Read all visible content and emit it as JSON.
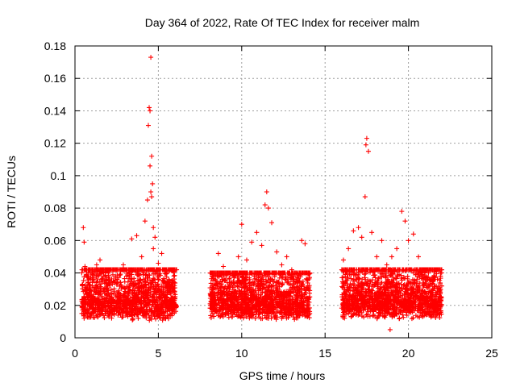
{
  "chart_data": {
    "type": "scatter",
    "title": "Day 364 of 2022, Rate Of TEC Index for receiver malm",
    "xlabel": "GPS time / hours",
    "ylabel": "ROTI / TECUs",
    "xlim": [
      0,
      25
    ],
    "ylim": [
      0,
      0.18
    ],
    "x_ticks": [
      "0",
      "5",
      "10",
      "15",
      "20",
      "25"
    ],
    "y_ticks": [
      "0",
      "0.02",
      "0.04",
      "0.06",
      "0.08",
      "0.1",
      "0.12",
      "0.14",
      "0.16",
      "0.18"
    ],
    "grid": true,
    "marker": "+",
    "color": "#ff0000",
    "series": [
      {
        "x": [
          0.5,
          0.55,
          0.6,
          0.7,
          0.9,
          1.1,
          1.3,
          1.5,
          1.7,
          2.0,
          2.3,
          2.6,
          2.9,
          3.1,
          3.4,
          3.7,
          4.0,
          4.2,
          4.35,
          4.45,
          4.5,
          4.55,
          4.6,
          4.65,
          4.7,
          4.8,
          5.0,
          5.2,
          5.5,
          5.8,
          6.0,
          0.6,
          1.0,
          1.4,
          1.8,
          2.2,
          2.7,
          3.2,
          3.6,
          4.1,
          4.4,
          4.5,
          4.55,
          4.6,
          4.7,
          5.3,
          5.7,
          8.3,
          8.6,
          8.9,
          9.2,
          9.5,
          9.8,
          10.0,
          10.3,
          10.6,
          10.9,
          11.2,
          11.4,
          11.5,
          11.6,
          11.8,
          12.1,
          12.4,
          12.7,
          13.0,
          13.3,
          13.6,
          13.8,
          14.0,
          8.5,
          9.0,
          9.7,
          10.2,
          10.8,
          11.5,
          12.3,
          13.1,
          13.9,
          16.1,
          16.4,
          16.7,
          17.0,
          17.2,
          17.4,
          17.45,
          17.5,
          17.6,
          17.8,
          18.1,
          18.4,
          18.7,
          19.0,
          19.3,
          19.6,
          19.8,
          20.0,
          20.3,
          20.6,
          20.9,
          21.2,
          21.5,
          21.8,
          22.0,
          16.5,
          17.3,
          18.0,
          18.9,
          19.5,
          20.1,
          20.8,
          21.6
        ],
        "y": [
          0.068,
          0.059,
          0.044,
          0.03,
          0.025,
          0.036,
          0.045,
          0.048,
          0.03,
          0.04,
          0.035,
          0.029,
          0.045,
          0.038,
          0.061,
          0.063,
          0.05,
          0.072,
          0.085,
          0.142,
          0.14,
          0.173,
          0.112,
          0.095,
          0.068,
          0.062,
          0.046,
          0.052,
          0.04,
          0.035,
          0.024,
          0.018,
          0.015,
          0.02,
          0.022,
          0.017,
          0.019,
          0.021,
          0.026,
          0.03,
          0.131,
          0.106,
          0.09,
          0.087,
          0.055,
          0.03,
          0.022,
          0.03,
          0.052,
          0.044,
          0.04,
          0.035,
          0.05,
          0.07,
          0.048,
          0.059,
          0.065,
          0.057,
          0.082,
          0.09,
          0.08,
          0.071,
          0.053,
          0.045,
          0.05,
          0.042,
          0.035,
          0.06,
          0.058,
          0.03,
          0.016,
          0.02,
          0.018,
          0.022,
          0.019,
          0.024,
          0.02,
          0.018,
          0.02,
          0.048,
          0.055,
          0.066,
          0.068,
          0.062,
          0.087,
          0.119,
          0.123,
          0.115,
          0.065,
          0.05,
          0.06,
          0.045,
          0.05,
          0.055,
          0.078,
          0.072,
          0.06,
          0.064,
          0.05,
          0.042,
          0.04,
          0.035,
          0.042,
          0.032,
          0.02,
          0.022,
          0.018,
          0.005,
          0.02,
          0.024,
          0.019,
          0.021
        ]
      }
    ],
    "scatter_bands": [
      {
        "x_start": 0.4,
        "x_end": 6.1,
        "y_low": 0.005,
        "y_high": 0.042
      },
      {
        "x_start": 8.1,
        "x_end": 14.1,
        "y_low": 0.006,
        "y_high": 0.04
      },
      {
        "x_start": 16.0,
        "x_end": 22.0,
        "y_low": 0.006,
        "y_high": 0.042
      }
    ]
  }
}
